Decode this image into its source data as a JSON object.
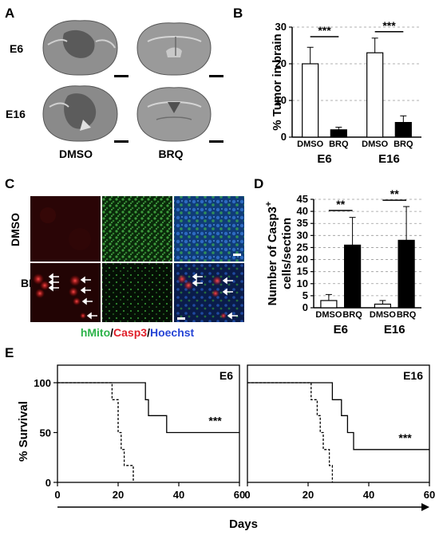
{
  "figure": {
    "panels": {
      "a": "A",
      "b": "B",
      "c": "C",
      "d": "D",
      "e": "E"
    },
    "panel_a": {
      "rows": [
        "E6",
        "E16"
      ],
      "columns": [
        "DMSO",
        "BRQ"
      ]
    },
    "panel_c": {
      "rows": [
        "DMSO",
        "BRQ"
      ],
      "legend": [
        {
          "text": "hMito",
          "color": "#2db34a"
        },
        {
          "text": "/",
          "color": "#000000"
        },
        {
          "text": "Casp3",
          "color": "#e0202a"
        },
        {
          "text": "/",
          "color": "#000000"
        },
        {
          "text": "Hoechst",
          "color": "#2745d6"
        }
      ]
    }
  },
  "chart_data": [
    {
      "id": "B",
      "type": "bar",
      "ylabel": "% Tumor in brain",
      "ylim": [
        0,
        30
      ],
      "yticks": [
        0,
        10,
        20,
        30
      ],
      "groups": [
        "E6",
        "E16"
      ],
      "categories": [
        "DMSO",
        "BRQ"
      ],
      "series": [
        {
          "name": "DMSO",
          "fill": "#ffffff",
          "values": [
            20,
            23
          ],
          "errors": [
            4.5,
            4
          ]
        },
        {
          "name": "BRQ",
          "fill": "#000000",
          "values": [
            2,
            4
          ],
          "errors": [
            0.7,
            1.8
          ]
        }
      ],
      "significance": [
        "***",
        "***"
      ],
      "grid": "dashed"
    },
    {
      "id": "D",
      "type": "bar",
      "ylabel_line1": "Number of Casp3",
      "ylabel_sup": "+",
      "ylabel_line2": "cells/section",
      "ylim": [
        0,
        45
      ],
      "yticks": [
        0,
        5,
        10,
        15,
        20,
        25,
        30,
        35,
        40,
        45
      ],
      "groups": [
        "E6",
        "E16"
      ],
      "categories": [
        "DMSO",
        "BRQ"
      ],
      "series": [
        {
          "name": "DMSO",
          "fill": "#ffffff",
          "values": [
            3,
            1.5
          ],
          "errors": [
            2.5,
            1.5
          ]
        },
        {
          "name": "BRQ",
          "fill": "#000000",
          "values": [
            26,
            28
          ],
          "errors": [
            11.5,
            14
          ]
        }
      ],
      "significance": [
        "**",
        "**"
      ],
      "grid": "dashed"
    },
    {
      "id": "E6",
      "type": "line",
      "title": "E6",
      "ylabel": "% Survival",
      "xlabel": "Days",
      "xlim": [
        0,
        60
      ],
      "ylim": [
        0,
        100
      ],
      "xticks": [
        0,
        20,
        40,
        60
      ],
      "yticks": [
        0,
        50,
        100
      ],
      "series": [
        {
          "style": "dashed",
          "points": [
            [
              0,
              100
            ],
            [
              18,
              100
            ],
            [
              18,
              83
            ],
            [
              20,
              83
            ],
            [
              20,
              50
            ],
            [
              21,
              50
            ],
            [
              21,
              33
            ],
            [
              22,
              33
            ],
            [
              22,
              17
            ],
            [
              25,
              17
            ],
            [
              25,
              0
            ]
          ]
        },
        {
          "style": "solid",
          "points": [
            [
              0,
              100
            ],
            [
              29,
              100
            ],
            [
              29,
              83
            ],
            [
              30,
              83
            ],
            [
              30,
              67
            ],
            [
              36,
              67
            ],
            [
              36,
              50
            ],
            [
              60,
              50
            ]
          ]
        }
      ],
      "significance": "***"
    },
    {
      "id": "E16",
      "type": "line",
      "title": "E16",
      "xlim": [
        0,
        60
      ],
      "ylim": [
        0,
        100
      ],
      "xticks": [
        0,
        20,
        40,
        60
      ],
      "series": [
        {
          "style": "dashed",
          "points": [
            [
              0,
              100
            ],
            [
              21,
              100
            ],
            [
              21,
              83
            ],
            [
              23,
              83
            ],
            [
              23,
              67
            ],
            [
              24,
              67
            ],
            [
              24,
              50
            ],
            [
              25,
              50
            ],
            [
              25,
              33
            ],
            [
              27,
              33
            ],
            [
              27,
              17
            ],
            [
              28,
              17
            ],
            [
              28,
              0
            ]
          ]
        },
        {
          "style": "solid",
          "points": [
            [
              0,
              100
            ],
            [
              28,
              100
            ],
            [
              28,
              83
            ],
            [
              31,
              83
            ],
            [
              31,
              67
            ],
            [
              33,
              67
            ],
            [
              33,
              50
            ],
            [
              35,
              50
            ],
            [
              35,
              33
            ],
            [
              60,
              33
            ]
          ]
        }
      ],
      "significance": "***"
    }
  ]
}
